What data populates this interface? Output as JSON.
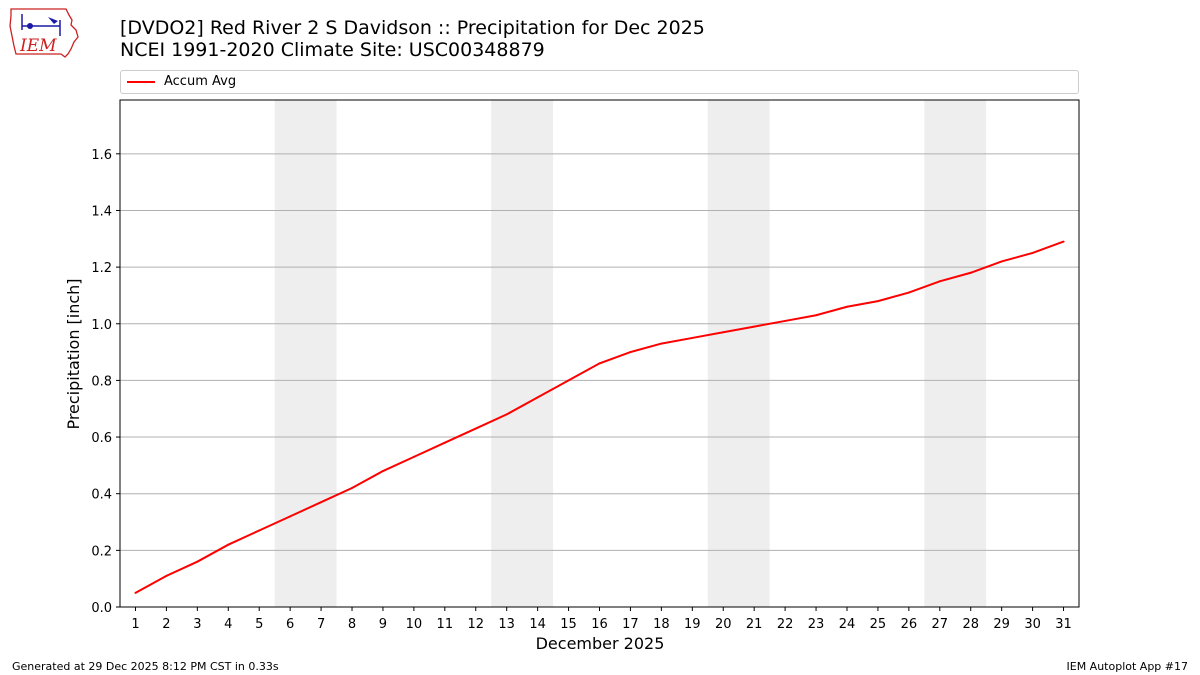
{
  "header": {
    "title_line1": "[DVDO2] Red River 2 S Davidson :: Precipitation for Dec 2025",
    "title_line2": "NCEI 1991-2020 Climate Site: USC00348879",
    "logo_text": "IEM"
  },
  "footer": {
    "generated": "Generated at 29 Dec 2025 8:12 PM CST in 0.33s",
    "app": "IEM Autoplot App #17"
  },
  "colors": {
    "series": "#ff0000",
    "weekend_band": "#eeeeee",
    "grid": "#b0b0b0"
  },
  "chart_data": {
    "type": "line",
    "xlabel": "December 2025",
    "ylabel": "Precipitation [inch]",
    "x": [
      1,
      2,
      3,
      4,
      5,
      6,
      7,
      8,
      9,
      10,
      11,
      12,
      13,
      14,
      15,
      16,
      17,
      18,
      19,
      20,
      21,
      22,
      23,
      24,
      25,
      26,
      27,
      28,
      29,
      30,
      31
    ],
    "xlim": [
      0.5,
      31.5
    ],
    "ylim": [
      0,
      1.79
    ],
    "yticks": [
      0.0,
      0.2,
      0.4,
      0.6,
      0.8,
      1.0,
      1.2,
      1.4,
      1.6
    ],
    "grid": "horizontal",
    "weekend_bands": [
      [
        6,
        7
      ],
      [
        13,
        14
      ],
      [
        20,
        21
      ],
      [
        27,
        28
      ]
    ],
    "legend_position": "top",
    "series": [
      {
        "name": "Accum Avg",
        "values": [
          0.05,
          0.11,
          0.16,
          0.22,
          0.27,
          0.32,
          0.37,
          0.42,
          0.48,
          0.53,
          0.58,
          0.63,
          0.68,
          0.74,
          0.8,
          0.86,
          0.9,
          0.93,
          0.95,
          0.97,
          0.99,
          1.01,
          1.03,
          1.06,
          1.08,
          1.11,
          1.15,
          1.18,
          1.22,
          1.25,
          1.29
        ]
      }
    ]
  }
}
